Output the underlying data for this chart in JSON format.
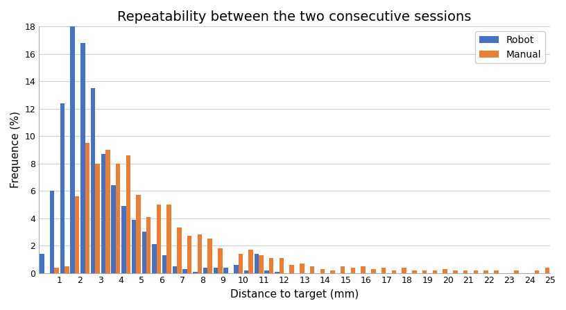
{
  "title": "Repeatability between the two consecutive sessions",
  "xlabel": "Distance to target (mm)",
  "ylabel": "Frequence (%)",
  "robot_color": "#4472C4",
  "manual_color": "#ED7D31",
  "ylim": [
    0,
    18
  ],
  "yticks": [
    0,
    2,
    4,
    6,
    8,
    10,
    12,
    14,
    16,
    18
  ],
  "xticks": [
    1,
    2,
    3,
    4,
    5,
    6,
    7,
    8,
    9,
    10,
    11,
    12,
    13,
    14,
    15,
    16,
    17,
    18,
    19,
    20,
    21,
    22,
    23,
    24,
    25
  ],
  "robot": [
    1.4,
    6.0,
    12.4,
    18.0,
    16.8,
    13.5,
    8.7,
    6.4,
    4.9,
    3.9,
    3.0,
    2.1,
    1.3,
    0.5,
    0.3,
    0.1,
    0.4,
    0.4,
    0.4,
    0.6,
    0.2,
    1.4,
    0.2,
    0.1,
    0.0,
    0.0,
    0.0,
    0.0,
    0.0,
    0.0,
    0.0,
    0.0,
    0.0,
    0.0,
    0.0,
    0.0,
    0.0,
    0.0,
    0.0,
    0.0,
    0.0,
    0.0,
    0.0,
    0.0,
    0.0,
    0.0,
    0.0,
    0.0,
    0.0,
    0.0
  ],
  "manual": [
    0.0,
    0.4,
    0.5,
    5.6,
    9.5,
    8.0,
    9.0,
    8.0,
    8.6,
    5.7,
    4.1,
    5.0,
    5.0,
    3.3,
    2.7,
    2.8,
    2.5,
    1.8,
    0.0,
    1.4,
    1.7,
    1.3,
    1.1,
    1.1,
    0.6,
    0.7,
    0.5,
    0.3,
    0.2,
    0.5,
    0.4,
    0.5,
    0.3,
    0.4,
    0.2,
    0.4,
    0.2,
    0.2,
    0.2,
    0.3,
    0.2,
    0.2,
    0.2,
    0.2,
    0.2,
    0.0,
    0.2,
    0.0,
    0.2,
    0.4
  ],
  "background_color": "#ffffff",
  "grid_color": "#d0d0d0"
}
